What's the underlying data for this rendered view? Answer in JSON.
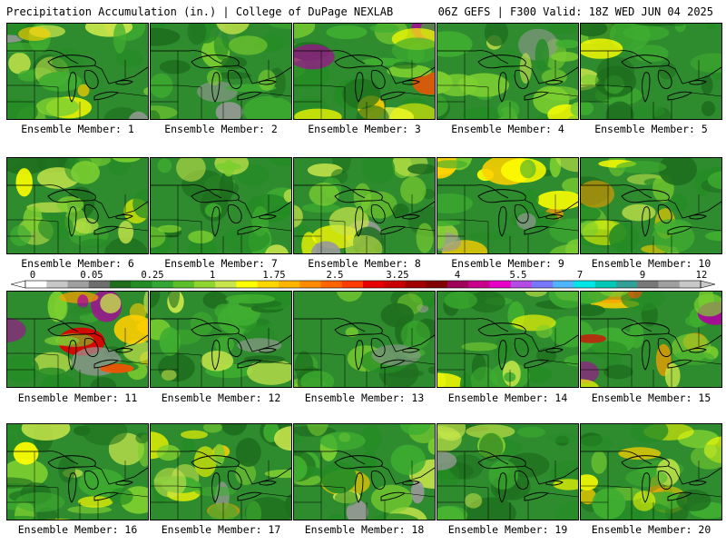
{
  "header": {
    "title": "Precipitation Accumulation (in.) | College of DuPage NEXLAB",
    "run_info": "06Z GEFS | F300 Valid: 18Z WED JUN 04 2025"
  },
  "caption_prefix": "Ensemble Member: ",
  "members": [
    {
      "id": 1,
      "label": "Ensemble Member: 1",
      "intensity": 0.55
    },
    {
      "id": 2,
      "label": "Ensemble Member: 2",
      "intensity": 0.4
    },
    {
      "id": 3,
      "label": "Ensemble Member: 3",
      "intensity": 0.85
    },
    {
      "id": 4,
      "label": "Ensemble Member: 4",
      "intensity": 0.55
    },
    {
      "id": 5,
      "label": "Ensemble Member: 5",
      "intensity": 0.4
    },
    {
      "id": 6,
      "label": "Ensemble Member: 6",
      "intensity": 0.5
    },
    {
      "id": 7,
      "label": "Ensemble Member: 7",
      "intensity": 0.45
    },
    {
      "id": 8,
      "label": "Ensemble Member: 8",
      "intensity": 0.45
    },
    {
      "id": 9,
      "label": "Ensemble Member: 9",
      "intensity": 0.65
    },
    {
      "id": 10,
      "label": "Ensemble Member: 10",
      "intensity": 0.6
    },
    {
      "id": 11,
      "label": "Ensemble Member: 11",
      "intensity": 0.75
    },
    {
      "id": 12,
      "label": "Ensemble Member: 12",
      "intensity": 0.4
    },
    {
      "id": 13,
      "label": "Ensemble Member: 13",
      "intensity": 0.4
    },
    {
      "id": 14,
      "label": "Ensemble Member: 14",
      "intensity": 0.55
    },
    {
      "id": 15,
      "label": "Ensemble Member: 15",
      "intensity": 0.75
    },
    {
      "id": 16,
      "label": "Ensemble Member: 16",
      "intensity": 0.45
    },
    {
      "id": 17,
      "label": "Ensemble Member: 17",
      "intensity": 0.6
    },
    {
      "id": 18,
      "label": "Ensemble Member: 18",
      "intensity": 0.5
    },
    {
      "id": 19,
      "label": "Ensemble Member: 19",
      "intensity": 0.5
    },
    {
      "id": 20,
      "label": "Ensemble Member: 20",
      "intensity": 0.6
    }
  ],
  "legend": {
    "tick_labels": [
      "0",
      "0.05",
      "0.25",
      "1",
      "1.75",
      "2.5",
      "3.25",
      "4",
      "5.5",
      "7",
      "9",
      "12"
    ],
    "colors": [
      "#ffffff",
      "#c8c8c8",
      "#a0a0a0",
      "#6e6e6e",
      "#1e6e1e",
      "#258c25",
      "#33a633",
      "#5cbf2a",
      "#8fd430",
      "#c8e64b",
      "#ffff00",
      "#ffd700",
      "#ffb400",
      "#ff8c00",
      "#ff6400",
      "#ff3c00",
      "#e60000",
      "#c80000",
      "#a00000",
      "#800000",
      "#a0005a",
      "#c8008c",
      "#e600c8",
      "#b44be6",
      "#7878ff",
      "#50b4ff",
      "#00e6e6",
      "#00c8b4",
      "#32a096",
      "#787878",
      "#a0a0a0",
      "#c8c8c8"
    ]
  }
}
